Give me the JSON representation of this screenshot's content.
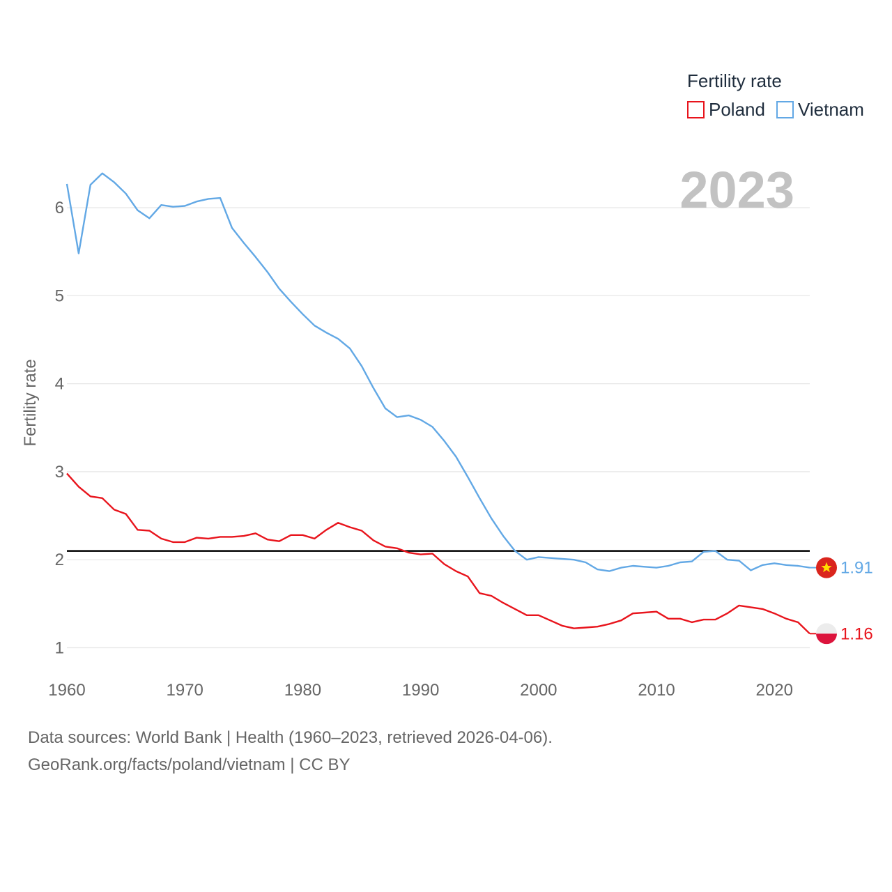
{
  "colors": {
    "poland": "#e8141c",
    "vietnam": "#62a8e5",
    "reference": "#000000",
    "grid": "#e6e6e6",
    "text": "#666666",
    "year": "#c2c2c2"
  },
  "legend": {
    "title": "Fertility rate",
    "items": [
      "Poland",
      "Vietnam"
    ]
  },
  "year_label": "2023",
  "footer": {
    "line1": "Data sources: World Bank | Health (1960–2023, retrieved 2026-04-06).",
    "line2": "GeoRank.org/facts/poland/vietnam | CC BY"
  },
  "end_labels": {
    "vietnam": "1.91",
    "poland": "1.16"
  },
  "flags": {
    "vietnam": "vietnam-flag-icon",
    "poland": "poland-flag-icon"
  },
  "chart_data": {
    "type": "line",
    "title": "",
    "xlabel": "",
    "ylabel": "Fertility rate",
    "xlim": [
      1960,
      2023
    ],
    "ylim": [
      0.8,
      6.6
    ],
    "x_ticks": [
      1960,
      1970,
      1980,
      1990,
      2000,
      2010,
      2020
    ],
    "y_ticks": [
      1,
      2,
      3,
      4,
      5,
      6
    ],
    "reference_line": 2.1,
    "x": [
      1960,
      1961,
      1962,
      1963,
      1964,
      1965,
      1966,
      1967,
      1968,
      1969,
      1970,
      1971,
      1972,
      1973,
      1974,
      1975,
      1976,
      1977,
      1978,
      1979,
      1980,
      1981,
      1982,
      1983,
      1984,
      1985,
      1986,
      1987,
      1988,
      1989,
      1990,
      1991,
      1992,
      1993,
      1994,
      1995,
      1996,
      1997,
      1998,
      1999,
      2000,
      2001,
      2002,
      2003,
      2004,
      2005,
      2006,
      2007,
      2008,
      2009,
      2010,
      2011,
      2012,
      2013,
      2014,
      2015,
      2016,
      2017,
      2018,
      2019,
      2020,
      2021,
      2022,
      2023
    ],
    "series": [
      {
        "name": "Poland",
        "values": [
          2.98,
          2.83,
          2.72,
          2.7,
          2.57,
          2.52,
          2.34,
          2.33,
          2.24,
          2.2,
          2.2,
          2.25,
          2.24,
          2.26,
          2.26,
          2.27,
          2.3,
          2.23,
          2.21,
          2.28,
          2.28,
          2.24,
          2.34,
          2.42,
          2.37,
          2.33,
          2.22,
          2.15,
          2.13,
          2.08,
          2.06,
          2.07,
          1.95,
          1.87,
          1.81,
          1.62,
          1.59,
          1.51,
          1.44,
          1.37,
          1.37,
          1.31,
          1.25,
          1.22,
          1.23,
          1.24,
          1.27,
          1.31,
          1.39,
          1.4,
          1.41,
          1.33,
          1.33,
          1.29,
          1.32,
          1.32,
          1.39,
          1.48,
          1.46,
          1.44,
          1.39,
          1.33,
          1.29,
          1.16
        ]
      },
      {
        "name": "Vietnam",
        "values": [
          6.27,
          5.48,
          6.26,
          6.39,
          6.29,
          6.16,
          5.97,
          5.88,
          6.03,
          6.01,
          6.02,
          6.07,
          6.1,
          6.11,
          5.77,
          5.6,
          5.44,
          5.27,
          5.08,
          4.93,
          4.79,
          4.66,
          4.58,
          4.51,
          4.4,
          4.2,
          3.95,
          3.72,
          3.62,
          3.64,
          3.59,
          3.51,
          3.35,
          3.17,
          2.94,
          2.7,
          2.47,
          2.27,
          2.1,
          2.0,
          2.03,
          2.02,
          2.01,
          2.0,
          1.97,
          1.89,
          1.87,
          1.91,
          1.93,
          1.92,
          1.91,
          1.93,
          1.97,
          1.98,
          2.09,
          2.1,
          2.0,
          1.99,
          1.88,
          1.94,
          1.96,
          1.94,
          1.93,
          1.91
        ]
      }
    ]
  }
}
